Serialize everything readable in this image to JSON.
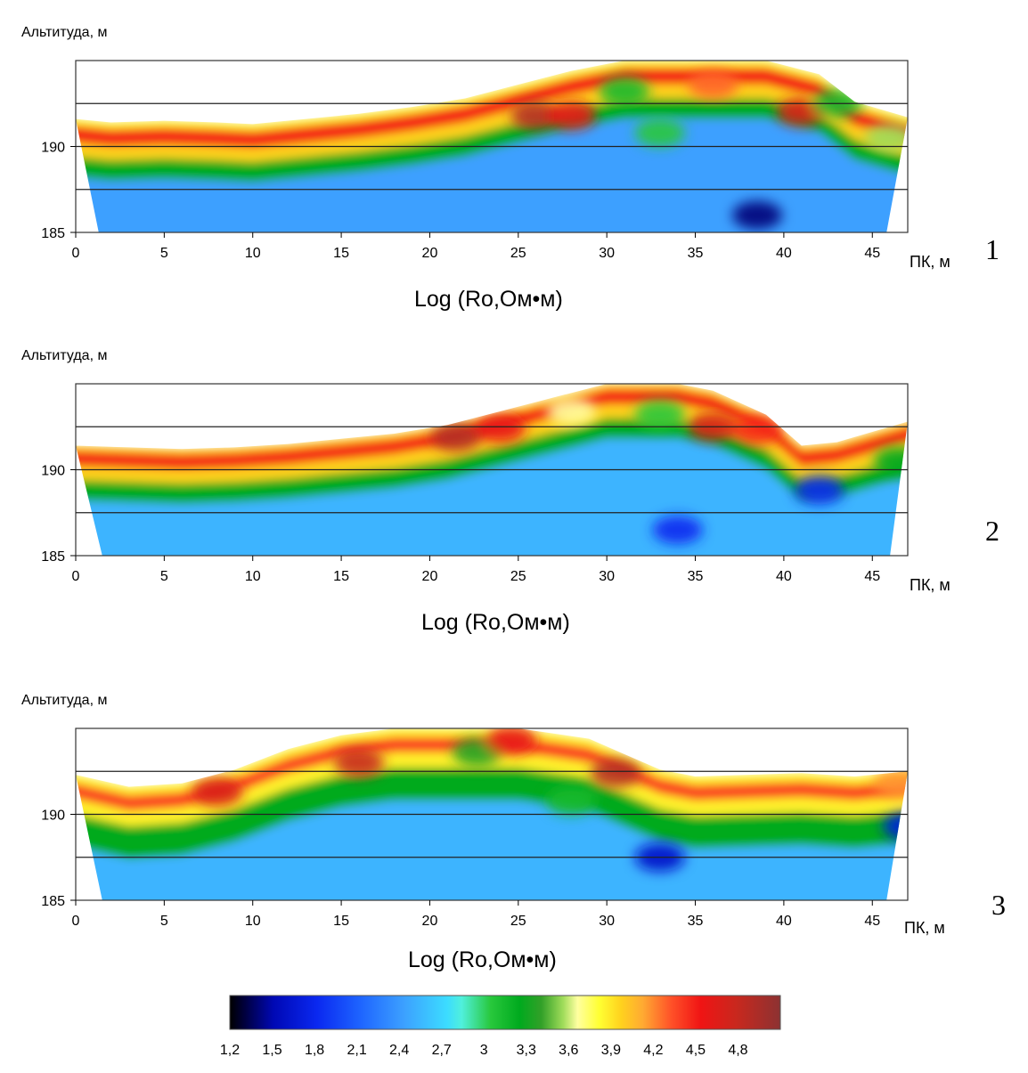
{
  "chart_data": [
    {
      "type": "heatmap",
      "panel_number": "1",
      "title": "Log (Ro,Ом•м)",
      "ylabel": "Альтитуда, м",
      "xlabel": "ПК, м",
      "xlim": [
        0,
        47
      ],
      "ylim": [
        185,
        195
      ],
      "x_ticks": [
        "0",
        "5",
        "10",
        "15",
        "20",
        "25",
        "30",
        "35",
        "40",
        "45"
      ],
      "y_ticks": [
        "185",
        "190"
      ],
      "reference_lines_y": [
        187.5,
        190,
        192.5
      ],
      "surface": [
        [
          0,
          191.6
        ],
        [
          2,
          191.4
        ],
        [
          5,
          191.5
        ],
        [
          8,
          191.4
        ],
        [
          10,
          191.3
        ],
        [
          13,
          191.6
        ],
        [
          16,
          191.9
        ],
        [
          19,
          192.3
        ],
        [
          22,
          192.8
        ],
        [
          25,
          193.6
        ],
        [
          28,
          194.4
        ],
        [
          31,
          195.0
        ],
        [
          35,
          195.0
        ],
        [
          39,
          195.0
        ],
        [
          42,
          194.2
        ],
        [
          44,
          192.6
        ],
        [
          46,
          192.0
        ],
        [
          47,
          191.7
        ]
      ],
      "base_edges": [
        1.3,
        45.8
      ],
      "layers": [
        {
          "top_offset": 0.0,
          "log_rho": 3.8
        },
        {
          "top_offset": 0.4,
          "log_rho": 4.4
        },
        {
          "top_offset": 1.4,
          "log_rho": 3.9
        },
        {
          "top_offset": 2.2,
          "log_rho": 3.2
        },
        {
          "top_offset": 3.4,
          "log_rho": 2.4
        }
      ],
      "anomalies": [
        {
          "x": 26,
          "y": 191.8,
          "log_rho": 4.8
        },
        {
          "x": 28,
          "y": 191.8,
          "log_rho": 4.5
        },
        {
          "x": 31,
          "y": 193.2,
          "log_rho": 3.1
        },
        {
          "x": 33,
          "y": 190.8,
          "log_rho": 3.0
        },
        {
          "x": 36,
          "y": 193.6,
          "log_rho": 4.2
        },
        {
          "x": 41,
          "y": 192.0,
          "log_rho": 4.6
        },
        {
          "x": 43,
          "y": 192.5,
          "log_rho": 3.1
        },
        {
          "x": 46,
          "y": 190.5,
          "log_rho": 3.5
        },
        {
          "x": 38.5,
          "y": 186.0,
          "log_rho": 1.4
        }
      ]
    },
    {
      "type": "heatmap",
      "panel_number": "2",
      "title": "Log (Ro,Ом•м)",
      "ylabel": "Альтитуда, м",
      "xlabel": "ПК, м",
      "xlim": [
        0,
        47
      ],
      "ylim": [
        185,
        195
      ],
      "x_ticks": [
        "0",
        "5",
        "10",
        "15",
        "20",
        "25",
        "30",
        "35",
        "40",
        "45"
      ],
      "y_ticks": [
        "185",
        "190"
      ],
      "reference_lines_y": [
        187.5,
        190,
        192.5
      ],
      "surface": [
        [
          0,
          191.4
        ],
        [
          3,
          191.3
        ],
        [
          6,
          191.2
        ],
        [
          9,
          191.3
        ],
        [
          12,
          191.5
        ],
        [
          15,
          191.8
        ],
        [
          18,
          192.1
        ],
        [
          21,
          192.6
        ],
        [
          24,
          193.4
        ],
        [
          27,
          194.2
        ],
        [
          30,
          195.0
        ],
        [
          34,
          195.0
        ],
        [
          36,
          194.6
        ],
        [
          39,
          193.2
        ],
        [
          41,
          191.4
        ],
        [
          43,
          191.6
        ],
        [
          45,
          192.2
        ],
        [
          47,
          192.8
        ]
      ],
      "base_edges": [
        1.5,
        46.0
      ],
      "layers": [
        {
          "top_offset": 0.0,
          "log_rho": 3.9
        },
        {
          "top_offset": 0.3,
          "log_rho": 4.4
        },
        {
          "top_offset": 1.2,
          "log_rho": 3.9
        },
        {
          "top_offset": 2.0,
          "log_rho": 3.2
        },
        {
          "top_offset": 3.2,
          "log_rho": 2.5
        }
      ],
      "anomalies": [
        {
          "x": 21.5,
          "y": 191.9,
          "log_rho": 4.8
        },
        {
          "x": 24,
          "y": 192.4,
          "log_rho": 4.5
        },
        {
          "x": 28,
          "y": 193.4,
          "log_rho": 3.6
        },
        {
          "x": 33,
          "y": 193.2,
          "log_rho": 3.0
        },
        {
          "x": 36,
          "y": 192.5,
          "log_rho": 4.6
        },
        {
          "x": 38.5,
          "y": 192.3,
          "log_rho": 4.4
        },
        {
          "x": 46.5,
          "y": 190.5,
          "log_rho": 3.2
        },
        {
          "x": 34,
          "y": 186.5,
          "log_rho": 1.8
        },
        {
          "x": 42,
          "y": 188.8,
          "log_rho": 1.8
        }
      ]
    },
    {
      "type": "heatmap",
      "panel_number": "3",
      "title": "Log (Ro,Ом•м)",
      "ylabel": "Альтитуда, м",
      "xlabel": "ПК, м",
      "xlim": [
        0,
        47
      ],
      "ylim": [
        185,
        195
      ],
      "x_ticks": [
        "0",
        "5",
        "10",
        "15",
        "20",
        "25",
        "30",
        "35",
        "40",
        "45"
      ],
      "y_ticks": [
        "185",
        "190"
      ],
      "reference_lines_y": [
        187.5,
        190,
        192.5
      ],
      "surface": [
        [
          0,
          192.3
        ],
        [
          3,
          191.6
        ],
        [
          6,
          191.8
        ],
        [
          9,
          192.6
        ],
        [
          12,
          193.8
        ],
        [
          15,
          194.6
        ],
        [
          18,
          195.0
        ],
        [
          22,
          195.0
        ],
        [
          25,
          195.0
        ],
        [
          29,
          194.4
        ],
        [
          31,
          193.5
        ],
        [
          33,
          192.6
        ],
        [
          35,
          192.2
        ],
        [
          38,
          192.3
        ],
        [
          41,
          192.4
        ],
        [
          44,
          192.2
        ],
        [
          47,
          192.5
        ]
      ],
      "base_edges": [
        1.5,
        45.8
      ],
      "layers": [
        {
          "top_offset": 0.0,
          "log_rho": 3.8
        },
        {
          "top_offset": 0.5,
          "log_rho": 4.3
        },
        {
          "top_offset": 1.4,
          "log_rho": 3.8
        },
        {
          "top_offset": 2.3,
          "log_rho": 3.2
        },
        {
          "top_offset": 4.2,
          "log_rho": 2.5
        }
      ],
      "anomalies": [
        {
          "x": 8,
          "y": 191.3,
          "log_rho": 4.6
        },
        {
          "x": 16,
          "y": 193.0,
          "log_rho": 4.7
        },
        {
          "x": 22.7,
          "y": 193.6,
          "log_rho": 3.3
        },
        {
          "x": 24.6,
          "y": 194.3,
          "log_rho": 4.5
        },
        {
          "x": 28,
          "y": 190.8,
          "log_rho": 3.1
        },
        {
          "x": 30.5,
          "y": 192.4,
          "log_rho": 4.8
        },
        {
          "x": 33,
          "y": 187.5,
          "log_rho": 1.6
        },
        {
          "x": 47,
          "y": 189.3,
          "log_rho": 1.7
        },
        {
          "x": 46.5,
          "y": 191.8,
          "log_rho": 4.1
        }
      ]
    }
  ],
  "colorbar": {
    "ticks": [
      "1,2",
      "1,5",
      "1,8",
      "2,1",
      "2,4",
      "2,7",
      "3",
      "3,3",
      "3,6",
      "3,9",
      "4,2",
      "4,5",
      "4,8"
    ],
    "range": [
      1.2,
      5.0
    ],
    "stops": [
      {
        "v": 1.2,
        "color": "#000000"
      },
      {
        "v": 1.3,
        "color": "#00003c"
      },
      {
        "v": 1.5,
        "color": "#0008b4"
      },
      {
        "v": 1.8,
        "color": "#0a28f0"
      },
      {
        "v": 2.1,
        "color": "#1e64ff"
      },
      {
        "v": 2.4,
        "color": "#3ca0ff"
      },
      {
        "v": 2.7,
        "color": "#3cdcff"
      },
      {
        "v": 2.8,
        "color": "#50f0dc"
      },
      {
        "v": 3.0,
        "color": "#28c83c"
      },
      {
        "v": 3.2,
        "color": "#00aa1e"
      },
      {
        "v": 3.35,
        "color": "#32a028"
      },
      {
        "v": 3.5,
        "color": "#a0dc5a"
      },
      {
        "v": 3.6,
        "color": "#ffffa0"
      },
      {
        "v": 3.75,
        "color": "#ffff32"
      },
      {
        "v": 3.9,
        "color": "#ffd21e"
      },
      {
        "v": 4.05,
        "color": "#ffaa32"
      },
      {
        "v": 4.25,
        "color": "#ff5028"
      },
      {
        "v": 4.45,
        "color": "#f01414"
      },
      {
        "v": 4.7,
        "color": "#c8281e"
      },
      {
        "v": 5.0,
        "color": "#8c3232"
      }
    ]
  }
}
